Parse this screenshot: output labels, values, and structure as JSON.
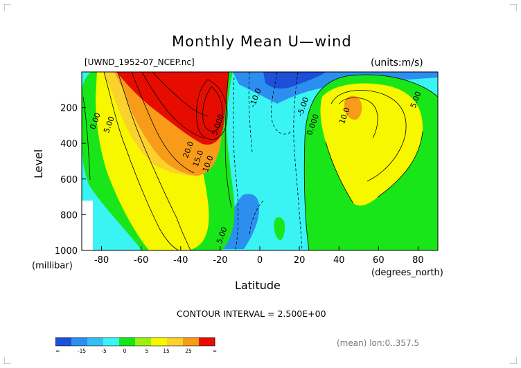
{
  "header": {
    "title": "Monthly Mean U—wind",
    "dataset": "[UWND_1952-07_NCEP.nc]",
    "units": "(units:m/s)"
  },
  "chart_data": {
    "type": "heatmap",
    "title": "Monthly Mean U—wind",
    "xlabel": "Latitude",
    "xlabel_units": "(degrees_north)",
    "ylabel": "Level",
    "ylabel_units": "(millibar)",
    "xlim": [
      -90,
      90
    ],
    "ylim": [
      1000,
      0
    ],
    "x_ticks": [
      "-80",
      "-60",
      "-40",
      "-20",
      "0",
      "20",
      "40",
      "60",
      "80"
    ],
    "x_tick_values": [
      -80,
      -60,
      -40,
      -20,
      0,
      20,
      40,
      60,
      80
    ],
    "y_ticks": [
      "200",
      "400",
      "600",
      "800",
      "1000"
    ],
    "y_tick_values": [
      200,
      400,
      600,
      800,
      1000
    ],
    "contour_interval_text": "CONTOUR INTERVAL = 2.500E+00",
    "contour_interval": 2.5,
    "contour_labels": [
      {
        "text": "-10.0",
        "lat": -1,
        "lev": 150
      },
      {
        "text": "-5.00",
        "lat": 23,
        "lev": 200
      },
      {
        "text": "0.000",
        "lat": 28,
        "lev": 300
      },
      {
        "text": "5.00",
        "lat": 80,
        "lev": 160
      },
      {
        "text": "10.0",
        "lat": 44,
        "lev": 250
      },
      {
        "text": "0.00",
        "lat": -82,
        "lev": 280
      },
      {
        "text": "5.00",
        "lat": -75,
        "lev": 300
      },
      {
        "text": "20.0",
        "lat": -35,
        "lev": 440
      },
      {
        "text": "15.0",
        "lat": -30,
        "lev": 490
      },
      {
        "text": "10.0",
        "lat": -25,
        "lev": 520
      },
      {
        "text": "5.000",
        "lat": -20,
        "lev": 300
      },
      {
        "text": "5.00",
        "lat": -18,
        "lev": 920
      }
    ],
    "colorbar": {
      "tick_labels": [
        "-∞",
        "-15",
        "-5",
        "0",
        "5",
        "15",
        "25",
        "∞"
      ],
      "colors": [
        "#1d4fd8",
        "#2c8ff0",
        "#36bdf2",
        "#3af4f4",
        "#19e619",
        "#9bef12",
        "#f7f700",
        "#fbd12c",
        "#f79b19",
        "#e60d00"
      ]
    },
    "colors": {
      "strong_easterly": "#1d4fd8",
      "easterly": "#2c8ff0",
      "weak_easterly": "#3af4f4",
      "weak_westerly": "#19e619",
      "westerly": "#f7f700",
      "strong_westerly": "#f79b19",
      "jet_core": "#e60d00"
    }
  },
  "footer": {
    "mean_note": "(mean) lon:0..357.5"
  }
}
